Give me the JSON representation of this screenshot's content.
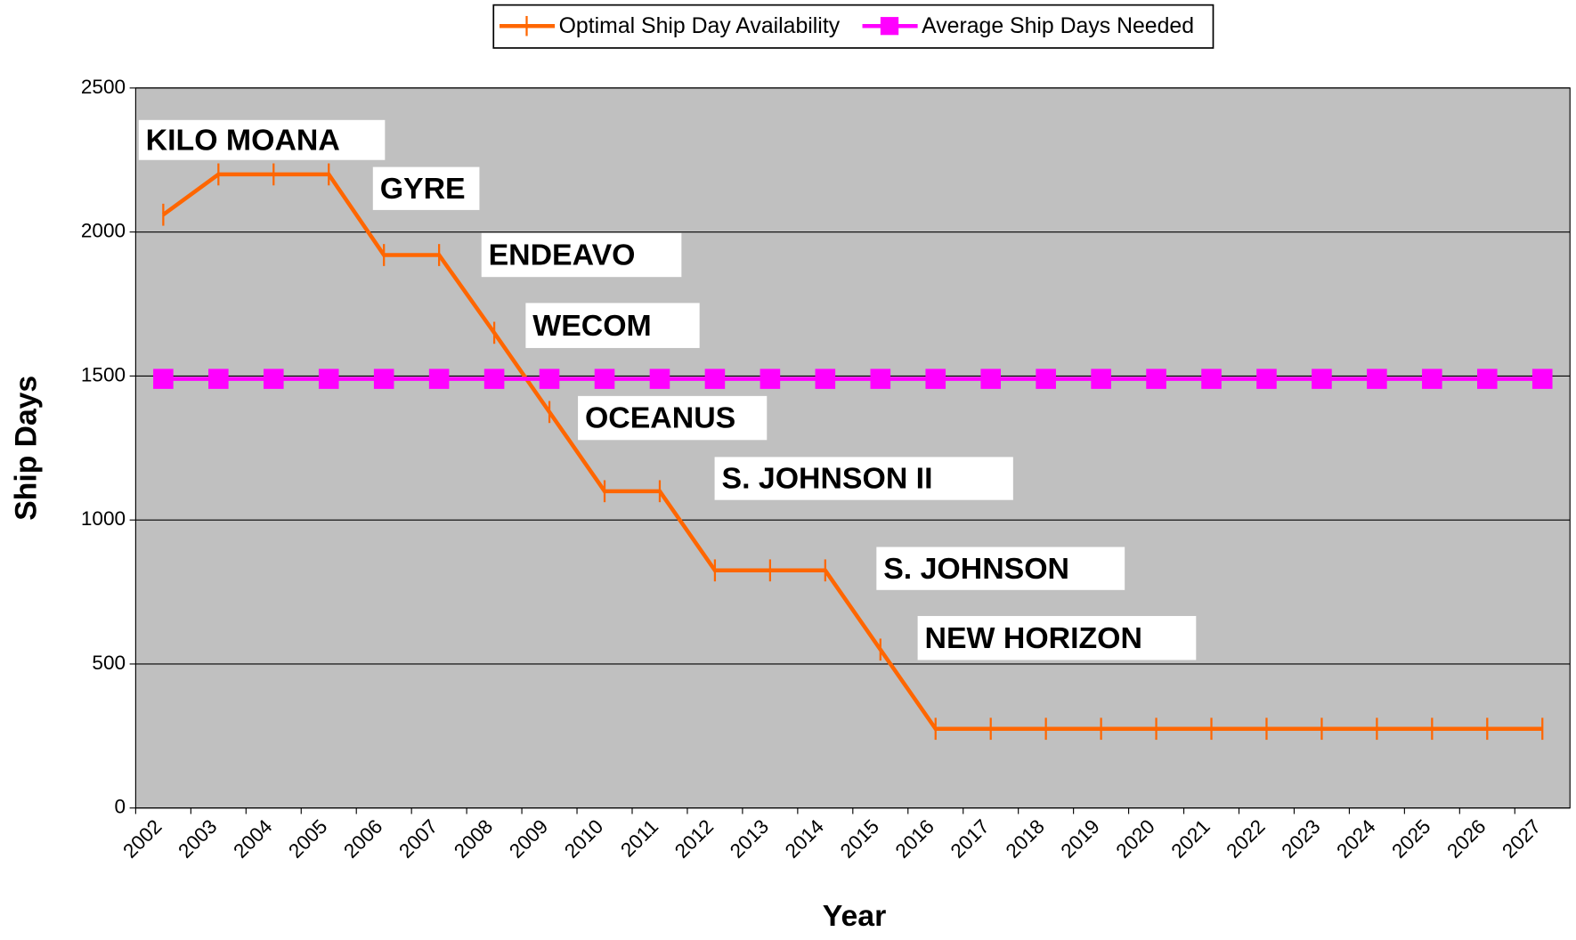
{
  "chart_data": {
    "type": "line",
    "x_label": "Year",
    "y_label": "Ship Days",
    "categories": [
      "2002",
      "2003",
      "2004",
      "2005",
      "2006",
      "2007",
      "2008",
      "2009",
      "2010",
      "2011",
      "2012",
      "2013",
      "2014",
      "2015",
      "2016",
      "2017",
      "2018",
      "2019",
      "2020",
      "2021",
      "2022",
      "2023",
      "2024",
      "2025",
      "2026",
      "2027"
    ],
    "series": [
      {
        "name": "Optimal Ship Day Availability",
        "color": "#ff6600",
        "marker": "tick",
        "values": [
          2060,
          2200,
          2200,
          2200,
          1920,
          1920,
          1650,
          1375,
          1100,
          1100,
          825,
          825,
          825,
          550,
          275,
          275,
          275,
          275,
          275,
          275,
          275,
          275,
          275,
          275,
          275,
          275
        ]
      },
      {
        "name": "Average Ship Days Needed",
        "color": "#ff00ff",
        "marker": "square",
        "values": [
          1490,
          1490,
          1490,
          1490,
          1490,
          1490,
          1490,
          1490,
          1490,
          1490,
          1490,
          1490,
          1490,
          1490,
          1490,
          1490,
          1490,
          1490,
          1490,
          1490,
          1490,
          1490,
          1490,
          1490,
          1490,
          1490
        ]
      }
    ],
    "ylim": [
      0,
      2500
    ],
    "yticks": [
      0,
      500,
      1000,
      1500,
      2000,
      2500
    ],
    "grid": true,
    "legend": "top",
    "annotations": [
      "KILO MOANA",
      "GYRE",
      "ENDEAVO",
      "WECOM",
      "OCEANUS",
      "S. JOHNSON II",
      "S. JOHNSON",
      "NEW HORIZON"
    ]
  }
}
